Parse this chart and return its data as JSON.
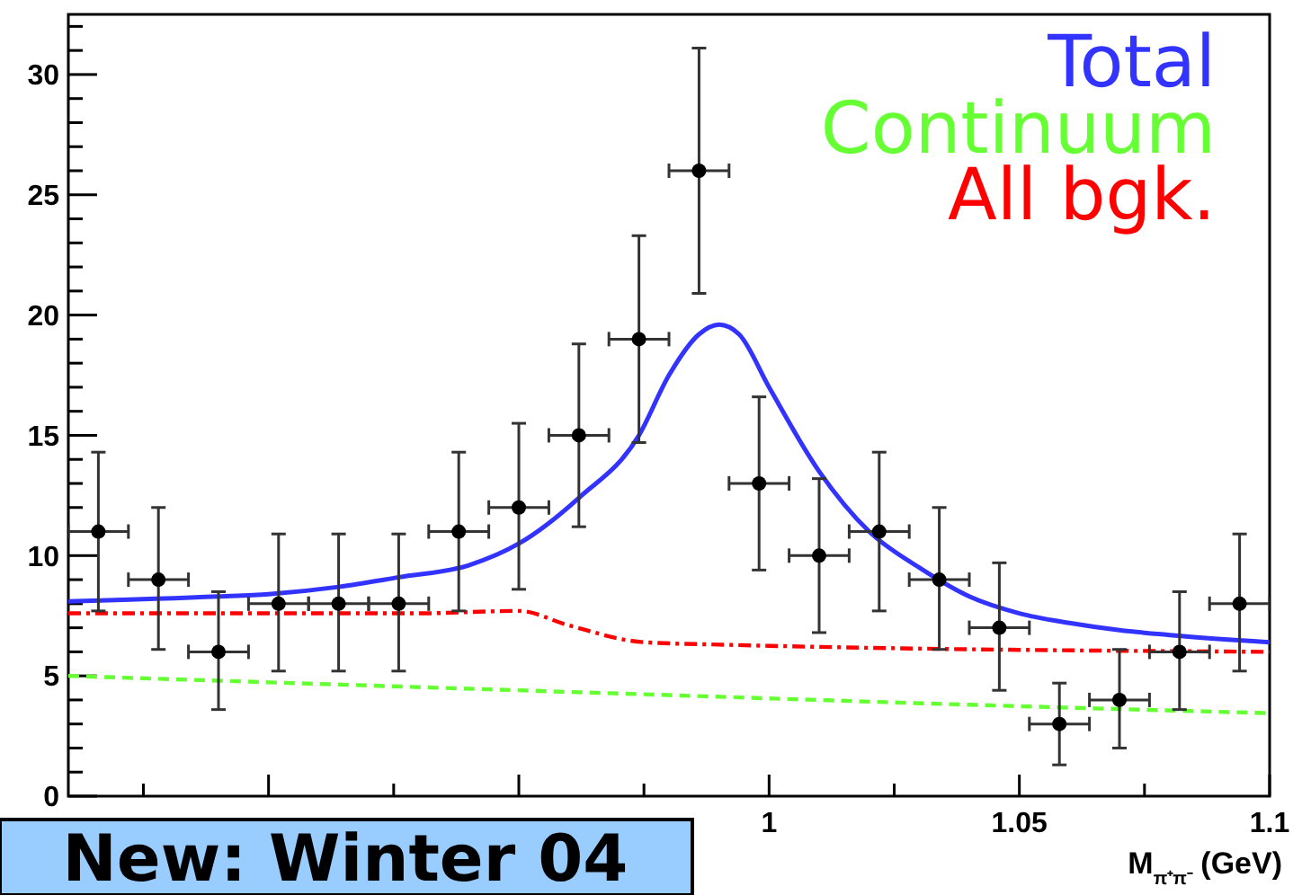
{
  "chart_data": {
    "type": "scatter",
    "xlabel": "M$_{π⁺π⁻}$ (GeV)",
    "xlim": [
      0.86,
      1.1
    ],
    "ylim": [
      0,
      32.5
    ],
    "xticks": [
      {
        "value": 0.875,
        "label": null
      },
      {
        "value": 0.9,
        "label": null
      },
      {
        "value": 0.925,
        "label": null
      },
      {
        "value": 0.95,
        "label": null
      },
      {
        "value": 0.975,
        "label": null
      },
      1,
      {
        "value": 1.025,
        "label": null
      },
      1.05,
      {
        "value": 1.075,
        "label": null
      },
      1.1
    ],
    "yticks": [
      0,
      {
        "value": 1,
        "label": null
      },
      {
        "value": 2,
        "label": null
      },
      {
        "value": 3,
        "label": null
      },
      {
        "value": 4,
        "label": null
      },
      5,
      {
        "value": 6,
        "label": null
      },
      {
        "value": 7,
        "label": null
      },
      {
        "value": 8,
        "label": null
      },
      {
        "value": 9,
        "label": null
      },
      10,
      {
        "value": 11,
        "label": null
      },
      {
        "value": 12,
        "label": null
      },
      {
        "value": 13,
        "label": null
      },
      {
        "value": 14,
        "label": null
      },
      15,
      {
        "value": 16,
        "label": null
      },
      {
        "value": 17,
        "label": null
      },
      {
        "value": 18,
        "label": null
      },
      {
        "value": 19,
        "label": null
      },
      20,
      {
        "value": 21,
        "label": null
      },
      {
        "value": 22,
        "label": null
      },
      {
        "value": 23,
        "label": null
      },
      {
        "value": 24,
        "label": null
      },
      25,
      {
        "value": 26,
        "label": null
      },
      {
        "value": 27,
        "label": null
      },
      {
        "value": 28,
        "label": null
      },
      {
        "value": 29,
        "label": null
      },
      30,
      {
        "value": 31,
        "label": null
      },
      {
        "value": 32,
        "label": null
      }
    ],
    "legend": "top right",
    "grid": false,
    "annotations": [
      "New: Winter 04"
    ],
    "series": [
      {
        "type": "line",
        "name": "Total",
        "color": "#3333ff",
        "line_style": "solid",
        "x": [
          0.86,
          0.89,
          0.9,
          0.914,
          0.926,
          0.94,
          0.95,
          0.962,
          0.974,
          0.98,
          0.986,
          0.99,
          0.994,
          1.0,
          1.01,
          1.02,
          1.03,
          1.04,
          1.05,
          1.06,
          1.07,
          1.08,
          1.1
        ],
        "values": [
          8.1,
          8.3,
          8.4,
          8.7,
          9.1,
          9.6,
          10.5,
          12.4,
          15,
          17.5,
          19.2,
          19.6,
          19.2,
          17,
          13.5,
          11,
          9.5,
          8.3,
          7.6,
          7.2,
          6.9,
          6.7,
          6.4
        ]
      },
      {
        "type": "line",
        "name": "Continuum",
        "color": "#66ff33",
        "line_style": "dashed",
        "x": [
          0.86,
          0.92,
          0.98,
          1.04,
          1.1
        ],
        "values": [
          5.0,
          4.6,
          4.2,
          3.8,
          3.45
        ]
      },
      {
        "type": "line",
        "name": "All bgk.",
        "color": "#ff0000",
        "line_style": "dashdot",
        "x": [
          0.86,
          0.93,
          0.95,
          0.96,
          0.975,
          0.99,
          1.1
        ],
        "values": [
          7.6,
          7.6,
          7.7,
          7.1,
          6.4,
          6.3,
          6.0
        ]
      },
      {
        "color": "#000000",
        "marker": "circle",
        "x": [
          0.866,
          0.878,
          0.89,
          0.902,
          0.914,
          0.926,
          0.938,
          0.95,
          0.962,
          0.974,
          0.986,
          0.998,
          1.01,
          1.022,
          1.034,
          1.046,
          1.058,
          1.07,
          1.082,
          1.094
        ],
        "values": [
          11,
          9,
          6,
          8,
          8,
          8,
          11,
          12,
          15,
          19,
          26,
          13,
          10,
          11,
          9,
          7,
          3,
          4,
          6,
          8
        ],
        "errors": [
          [
            7.7,
            14.3
          ],
          [
            6.1,
            12
          ],
          [
            3.6,
            8.5
          ],
          [
            5.2,
            10.9
          ],
          [
            5.2,
            10.9
          ],
          [
            5.2,
            10.9
          ],
          [
            7.7,
            14.3
          ],
          [
            8.6,
            15.5
          ],
          [
            11.2,
            18.8
          ],
          [
            14.7,
            23.3
          ],
          [
            20.9,
            31.1
          ],
          [
            9.4,
            16.6
          ],
          [
            6.8,
            13.2
          ],
          [
            7.7,
            14.3
          ],
          [
            6.1,
            12
          ],
          [
            4.4,
            9.7
          ],
          [
            1.3,
            4.7
          ],
          [
            2,
            6.1
          ],
          [
            3.6,
            8.5
          ],
          [
            5.2,
            10.9
          ]
        ],
        "xerrors": [
          0.006,
          0.006,
          0.006,
          0.006,
          0.006,
          0.006,
          0.006,
          0.006,
          0.006,
          0.006,
          0.006,
          0.006,
          0.006,
          0.006,
          0.006,
          0.006,
          0.006,
          0.006,
          0.006,
          0.006
        ]
      }
    ]
  }
}
